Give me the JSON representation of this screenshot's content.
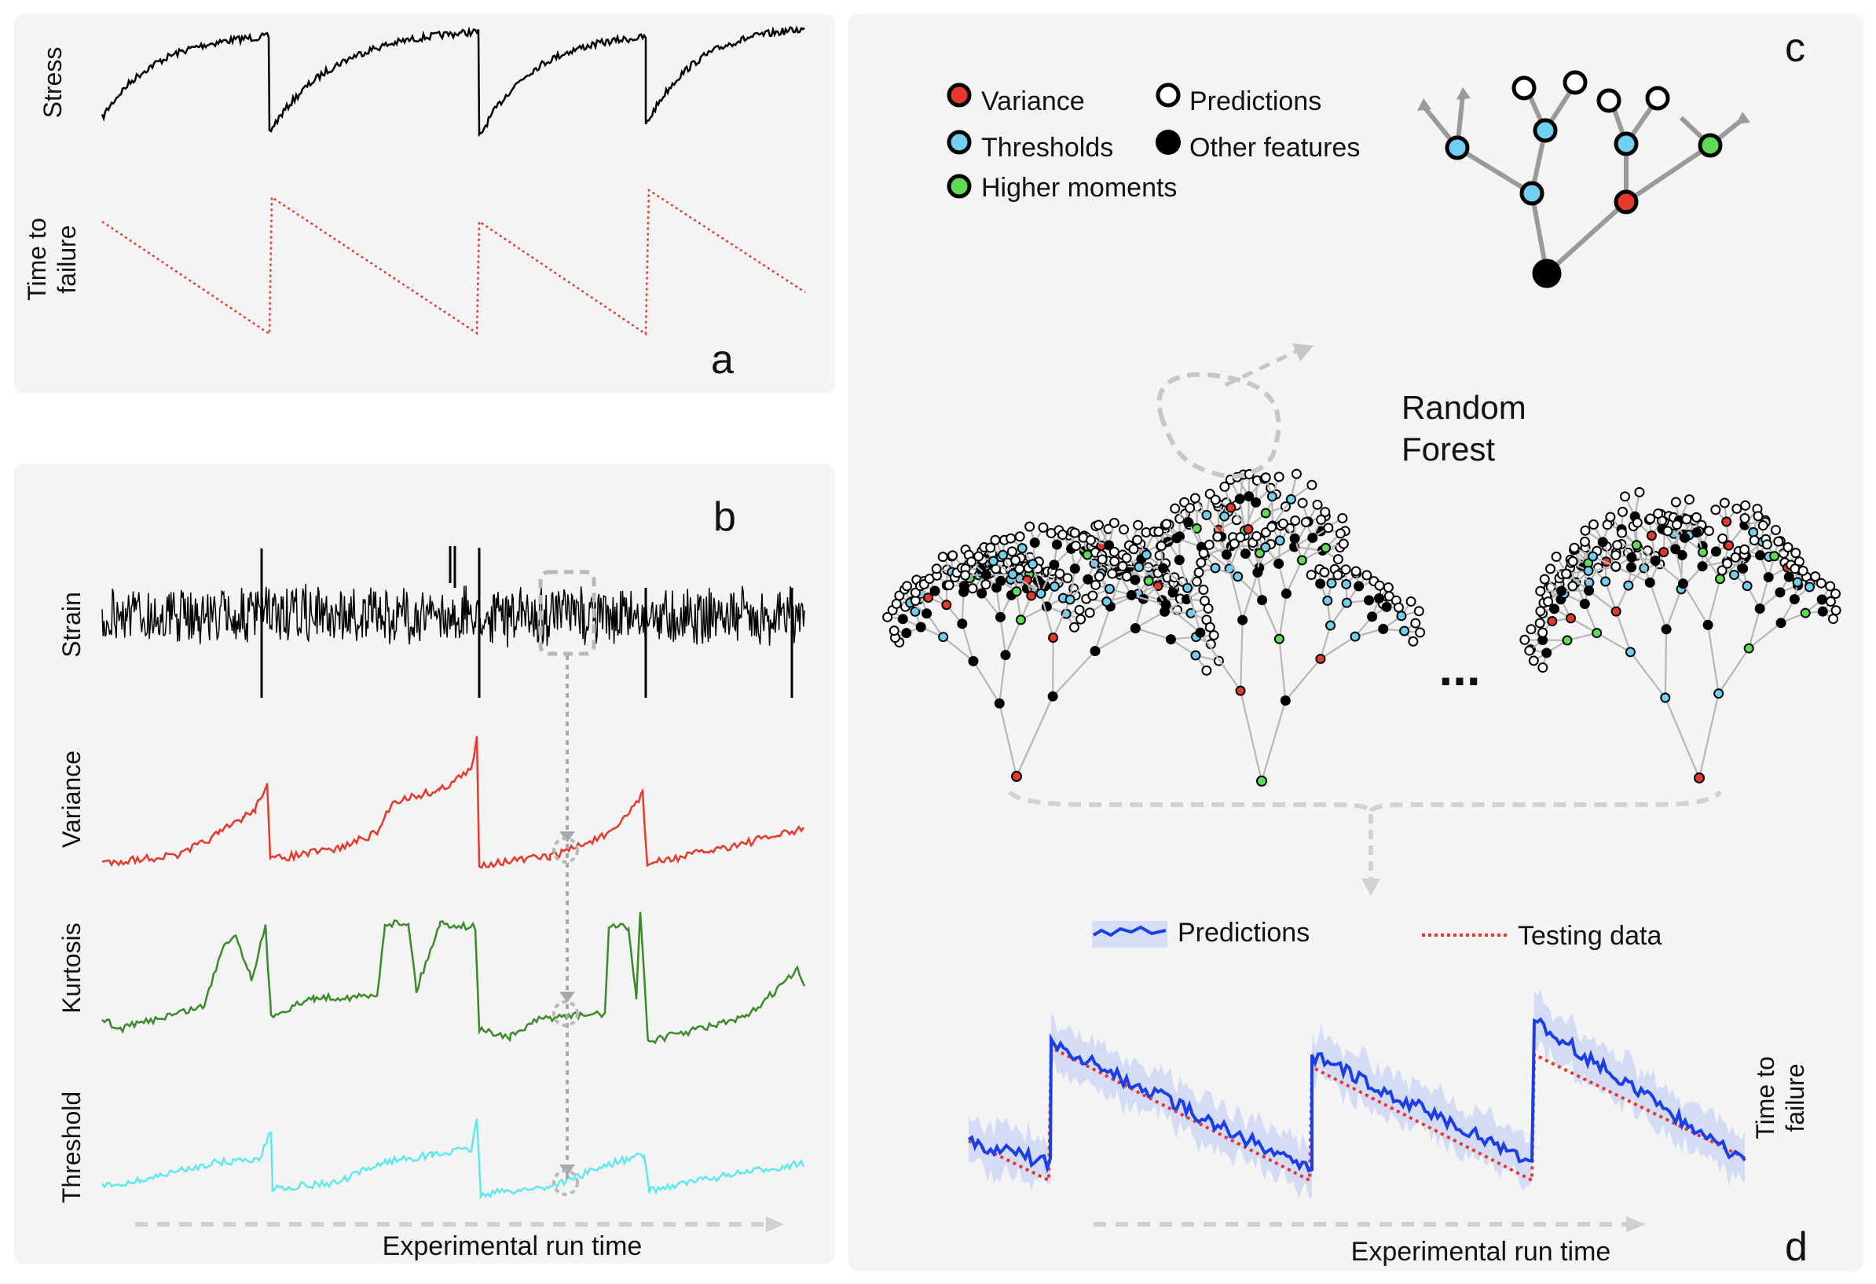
{
  "panel_a": {
    "letter": "a",
    "ylabel_stress": "Stress",
    "ylabel_ttf_line1": "Time to",
    "ylabel_ttf_line2": "failure"
  },
  "panel_b": {
    "letter": "b",
    "ylabel_strain": "Strain",
    "ylabel_variance": "Variance",
    "ylabel_kurtosis": "Kurtosis",
    "ylabel_threshold": "Threshold",
    "xlabel": "Experimental run time"
  },
  "panel_c": {
    "letter": "c",
    "legend": {
      "variance": "Variance",
      "thresholds": "Thresholds",
      "higher_moments": "Higher moments",
      "predictions": "Predictions",
      "other_features": "Other features"
    },
    "random_forest_line1": "Random",
    "random_forest_line2": "Forest",
    "ellipsis": "..."
  },
  "panel_d": {
    "letter": "d",
    "legend_predictions": "Predictions",
    "legend_testing": "Testing data",
    "ylabel_line1": "Time to",
    "ylabel_line2": "failure",
    "xlabel": "Experimental run time"
  },
  "colors": {
    "variance": "#e8382b",
    "thresholds": "#6fd0f0",
    "higher_moments": "#5fdc55",
    "stress": "#000000",
    "ttf": "#e8382b",
    "kurtosis": "#3a8a2a",
    "threshold_line": "#5fe8ee",
    "prediction": "#1a3ee8",
    "panel_bg": "#f4f4f4"
  }
}
